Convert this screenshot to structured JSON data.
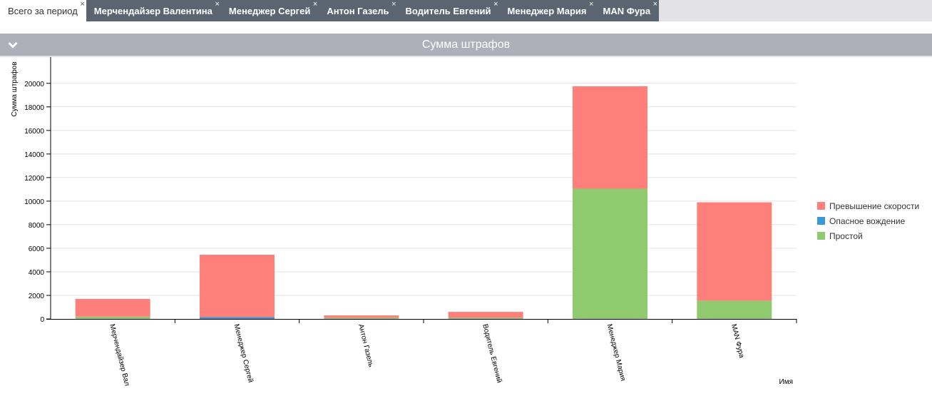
{
  "tabs": [
    {
      "label": "Всего за период",
      "active": true
    },
    {
      "label": "Мерчендайзер Валентина",
      "active": false
    },
    {
      "label": "Менеджер Сергей",
      "active": false
    },
    {
      "label": "Антон Газель",
      "active": false
    },
    {
      "label": "Водитель Евгений",
      "active": false
    },
    {
      "label": "Менеджер Мария",
      "active": false
    },
    {
      "label": "MAN Фура",
      "active": false
    }
  ],
  "tab_close_glyph": "×",
  "panel": {
    "title": "Сумма штрафов",
    "toggle_icon": "chevron-down-icon"
  },
  "chart_data": {
    "type": "bar",
    "stacked": true,
    "ylabel": "Сумма штрафов",
    "xlabel": "Имя",
    "ylim": [
      0,
      21500
    ],
    "yticks": [
      0,
      2000,
      4000,
      6000,
      8000,
      10000,
      12000,
      14000,
      16000,
      18000,
      20000
    ],
    "grid": true,
    "legend_position": "right",
    "categories": [
      "Мерчендайзер Вал",
      "Менеджер Сергей",
      "Антон Газель",
      "Водитель Евгений",
      "Менеджер Мария",
      "MAN Фура"
    ],
    "series": [
      {
        "name": "Простой",
        "color": "#8fca6f",
        "values": [
          200,
          0,
          100,
          100,
          11050,
          1550
        ]
      },
      {
        "name": "Опасное вождение",
        "color": "#3a9ad9",
        "values": [
          0,
          150,
          0,
          0,
          0,
          0
        ]
      },
      {
        "name": "Превышение скорости",
        "color": "#ff7f7b",
        "values": [
          1500,
          5300,
          200,
          500,
          8700,
          8350
        ]
      }
    ],
    "legend_order": [
      "Превышение скорости",
      "Опасное вождение",
      "Простой"
    ]
  }
}
